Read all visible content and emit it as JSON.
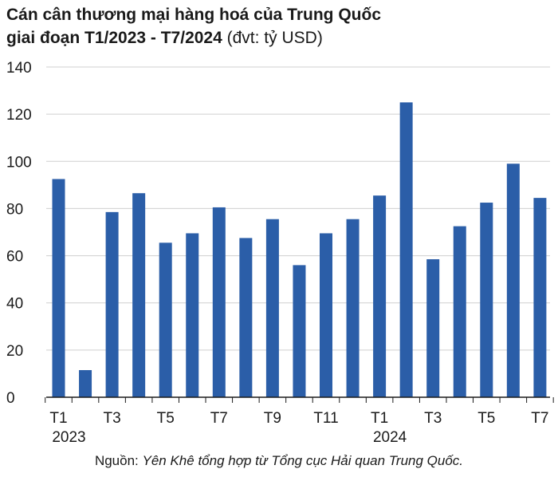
{
  "title": {
    "line1": "Cán cân thương mại hàng hoá của Trung Quốc",
    "line2_bold": "giai đoạn T1/2023 - T7/2024",
    "line2_unit": " (đvt: tỷ USD)"
  },
  "source": {
    "prefix": "Nguồn: ",
    "text": "Yên Khê tổng hợp từ Tổng cục Hải quan Trung Quốc."
  },
  "chart_data": {
    "type": "bar",
    "title": "Cán cân thương mại hàng hoá của Trung Quốc giai đoạn T1/2023 - T7/2024 (đvt: tỷ USD)",
    "categories": [
      "T1/2023",
      "T2/2023",
      "T3/2023",
      "T4/2023",
      "T5/2023",
      "T6/2023",
      "T7/2023",
      "T8/2023",
      "T9/2023",
      "T10/2023",
      "T11/2023",
      "T12/2023",
      "T1/2024",
      "T2/2024",
      "T3/2024",
      "T4/2024",
      "T5/2024",
      "T6/2024",
      "T7/2024"
    ],
    "values": [
      92.5,
      11.5,
      78.5,
      86.5,
      65.5,
      69.5,
      80.5,
      67.5,
      75.5,
      56,
      69.5,
      75.5,
      85.5,
      125,
      58.5,
      72.5,
      82.5,
      99,
      84.5
    ],
    "x_tick_labels": [
      "T1",
      "",
      "T3",
      "",
      "T5",
      "",
      "T7",
      "",
      "T9",
      "",
      "T11",
      "",
      "T1",
      "",
      "T3",
      "",
      "T5",
      "",
      "T7"
    ],
    "x_year_labels": [
      {
        "index": 0,
        "label": "2023"
      },
      {
        "index": 12,
        "label": "2024"
      }
    ],
    "y_ticks": [
      0,
      20,
      40,
      60,
      80,
      100,
      120,
      140
    ],
    "ylim": [
      0,
      140
    ],
    "grid": true,
    "legend": "none",
    "bar_color": "#2b5ea8",
    "grid_color": "#cfcfcf",
    "xlabel": "",
    "ylabel": ""
  }
}
